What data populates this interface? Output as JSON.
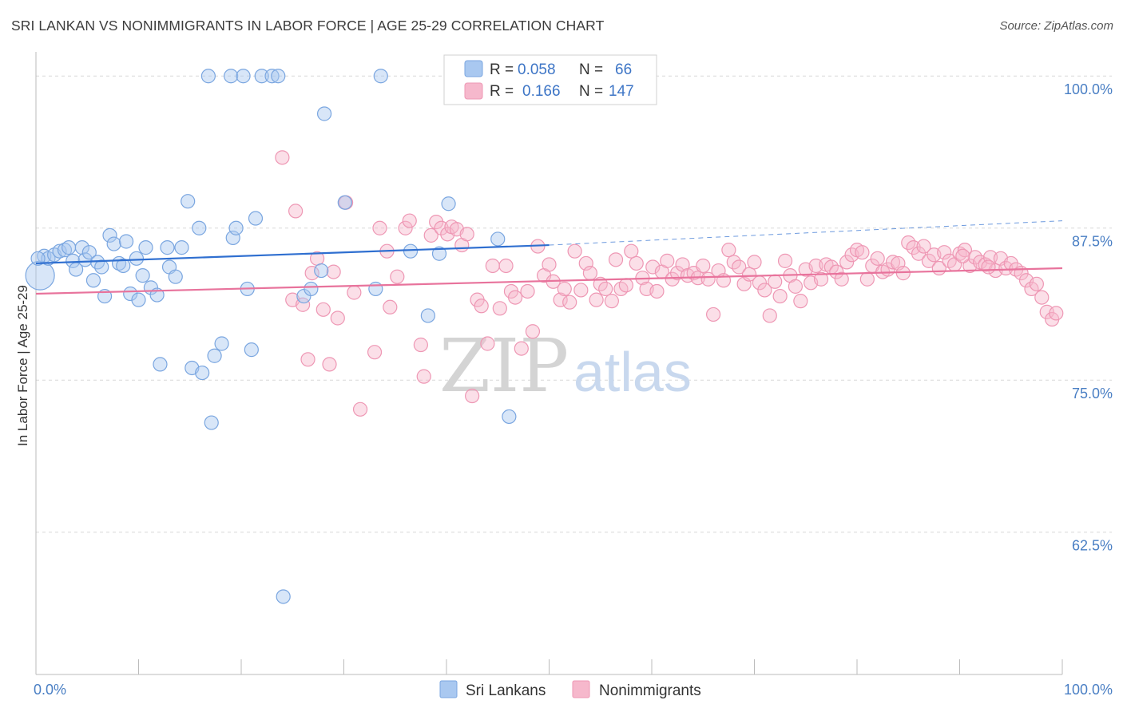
{
  "title": "SRI LANKAN VS NONIMMIGRANTS IN LABOR FORCE | AGE 25-29 CORRELATION CHART",
  "source": "Source: ZipAtlas.com",
  "watermark": {
    "zip": "ZIP",
    "atlas": "atlas"
  },
  "colors": {
    "blue_fill": "#a9c8f0",
    "blue_stroke": "#7aa6e0",
    "blue_line": "#2f6fd0",
    "pink_fill": "#f6b8cc",
    "pink_stroke": "#ee97b4",
    "pink_line": "#e8739c",
    "grid": "#d8d8d8",
    "tick_text": "#4a7fc4"
  },
  "legend_top": {
    "rows": [
      {
        "r_label": "R =",
        "r_value": "0.058",
        "n_label": "N =",
        "n_value": "66"
      },
      {
        "r_label": "R =",
        "r_value": "0.166",
        "n_label": "N =",
        "n_value": "147"
      }
    ]
  },
  "legend_bottom": [
    "Sri Lankans",
    "Nonimmigrants"
  ],
  "chart_data": {
    "type": "scatter",
    "xlabel": "",
    "ylabel": "In Labor Force | Age 25-29",
    "x_tick_labels": [
      "0.0%",
      "100.0%"
    ],
    "y_tick_labels": [
      "100.0%",
      "87.5%",
      "75.0%",
      "62.5%"
    ],
    "xlim": [
      0,
      100
    ],
    "ylim": [
      50.8,
      101.0
    ],
    "series": [
      {
        "name": "Sri Lankans",
        "color": "#a9c8f0",
        "trend": {
          "x": [
            0,
            50
          ],
          "y": [
            84.6,
            86.1
          ]
        },
        "trend_dashed": {
          "x": [
            50,
            100
          ],
          "y": [
            86.1,
            88.1
          ]
        },
        "points": [
          [
            0.4,
            83.6
          ],
          [
            0.8,
            85.2
          ],
          [
            1.2,
            85.0
          ],
          [
            1.8,
            85.3
          ],
          [
            2.3,
            85.6
          ],
          [
            2.8,
            85.7
          ],
          [
            3.2,
            85.9
          ],
          [
            3.6,
            84.8
          ],
          [
            3.9,
            84.1
          ],
          [
            4.5,
            85.9
          ],
          [
            4.8,
            84.9
          ],
          [
            5.2,
            85.5
          ],
          [
            5.6,
            83.2
          ],
          [
            6.0,
            84.7
          ],
          [
            6.4,
            84.3
          ],
          [
            6.7,
            81.9
          ],
          [
            7.2,
            86.9
          ],
          [
            7.6,
            86.2
          ],
          [
            8.1,
            84.6
          ],
          [
            8.5,
            84.4
          ],
          [
            8.8,
            86.4
          ],
          [
            9.2,
            82.1
          ],
          [
            9.8,
            85.0
          ],
          [
            10.0,
            81.6
          ],
          [
            10.4,
            83.6
          ],
          [
            10.7,
            85.9
          ],
          [
            11.2,
            82.6
          ],
          [
            11.8,
            82.0
          ],
          [
            12.1,
            76.3
          ],
          [
            12.8,
            85.9
          ],
          [
            13.0,
            84.3
          ],
          [
            13.6,
            83.5
          ],
          [
            14.2,
            85.9
          ],
          [
            14.8,
            89.7
          ],
          [
            15.2,
            76.0
          ],
          [
            15.9,
            87.5
          ],
          [
            16.2,
            75.6
          ],
          [
            16.8,
            100.0
          ],
          [
            17.1,
            71.5
          ],
          [
            17.4,
            77.0
          ],
          [
            18.1,
            78.0
          ],
          [
            19.0,
            100.0
          ],
          [
            19.2,
            86.7
          ],
          [
            19.5,
            87.5
          ],
          [
            20.2,
            100.0
          ],
          [
            20.6,
            82.5
          ],
          [
            21.0,
            77.5
          ],
          [
            21.4,
            88.3
          ],
          [
            22.0,
            100.0
          ],
          [
            23.0,
            100.0
          ],
          [
            23.6,
            100.0
          ],
          [
            24.1,
            57.2
          ],
          [
            26.1,
            81.9
          ],
          [
            26.8,
            82.5
          ],
          [
            27.8,
            84.0
          ],
          [
            28.1,
            96.9
          ],
          [
            30.1,
            89.6
          ],
          [
            33.1,
            82.5
          ],
          [
            33.6,
            100.0
          ],
          [
            36.5,
            85.6
          ],
          [
            38.2,
            80.3
          ],
          [
            39.3,
            85.4
          ],
          [
            40.2,
            89.5
          ],
          [
            45.0,
            86.6
          ],
          [
            46.1,
            72.0
          ],
          [
            0.2,
            85.0
          ]
        ]
      },
      {
        "name": "Nonimmigrants",
        "color": "#f6b8cc",
        "trend": {
          "x": [
            0,
            100
          ],
          "y": [
            82.1,
            84.2
          ]
        },
        "points": [
          [
            24.0,
            93.3
          ],
          [
            25.0,
            81.6
          ],
          [
            25.3,
            88.9
          ],
          [
            26.0,
            81.2
          ],
          [
            26.5,
            76.7
          ],
          [
            26.9,
            83.8
          ],
          [
            27.4,
            85.0
          ],
          [
            28.0,
            80.8
          ],
          [
            28.6,
            76.3
          ],
          [
            29.0,
            83.9
          ],
          [
            29.4,
            80.1
          ],
          [
            30.2,
            89.6
          ],
          [
            31.0,
            82.2
          ],
          [
            31.6,
            72.6
          ],
          [
            33.0,
            77.3
          ],
          [
            33.5,
            87.5
          ],
          [
            34.2,
            85.6
          ],
          [
            34.5,
            81.0
          ],
          [
            35.2,
            83.5
          ],
          [
            36.0,
            87.5
          ],
          [
            36.4,
            88.1
          ],
          [
            37.5,
            77.9
          ],
          [
            37.8,
            75.3
          ],
          [
            38.5,
            86.9
          ],
          [
            39.0,
            88.0
          ],
          [
            39.5,
            87.5
          ],
          [
            40.1,
            87.0
          ],
          [
            40.5,
            87.6
          ],
          [
            41.0,
            87.4
          ],
          [
            41.5,
            86.1
          ],
          [
            42.0,
            87.0
          ],
          [
            42.5,
            73.7
          ],
          [
            43.0,
            81.6
          ],
          [
            43.4,
            81.1
          ],
          [
            44.0,
            78.0
          ],
          [
            44.5,
            84.4
          ],
          [
            45.2,
            80.9
          ],
          [
            45.8,
            84.4
          ],
          [
            46.3,
            82.3
          ],
          [
            46.7,
            81.8
          ],
          [
            47.3,
            77.6
          ],
          [
            47.9,
            82.3
          ],
          [
            48.4,
            79.0
          ],
          [
            48.9,
            86.0
          ],
          [
            49.5,
            83.6
          ],
          [
            50.0,
            84.5
          ],
          [
            50.4,
            83.1
          ],
          [
            51.1,
            81.6
          ],
          [
            51.5,
            82.5
          ],
          [
            52.0,
            81.4
          ],
          [
            52.5,
            85.6
          ],
          [
            53.1,
            82.4
          ],
          [
            53.6,
            84.6
          ],
          [
            54.0,
            83.8
          ],
          [
            54.6,
            81.6
          ],
          [
            55.0,
            82.9
          ],
          [
            55.5,
            82.5
          ],
          [
            56.1,
            81.5
          ],
          [
            56.5,
            84.9
          ],
          [
            57.0,
            82.5
          ],
          [
            57.5,
            82.8
          ],
          [
            58.0,
            85.6
          ],
          [
            58.5,
            84.6
          ],
          [
            59.1,
            83.4
          ],
          [
            59.5,
            82.5
          ],
          [
            60.1,
            84.3
          ],
          [
            60.5,
            82.3
          ],
          [
            61.0,
            83.9
          ],
          [
            61.5,
            84.8
          ],
          [
            62.0,
            83.3
          ],
          [
            62.5,
            83.8
          ],
          [
            63.0,
            84.5
          ],
          [
            63.5,
            83.6
          ],
          [
            64.1,
            83.8
          ],
          [
            64.5,
            83.4
          ],
          [
            65.0,
            84.4
          ],
          [
            65.5,
            83.3
          ],
          [
            66.0,
            80.4
          ],
          [
            66.5,
            84.0
          ],
          [
            67.0,
            83.2
          ],
          [
            67.5,
            85.7
          ],
          [
            68.0,
            84.7
          ],
          [
            68.5,
            84.3
          ],
          [
            69.0,
            82.9
          ],
          [
            69.5,
            83.7
          ],
          [
            70.0,
            84.7
          ],
          [
            70.5,
            83.0
          ],
          [
            71.0,
            82.4
          ],
          [
            71.5,
            80.3
          ],
          [
            72.0,
            83.1
          ],
          [
            72.5,
            81.9
          ],
          [
            73.0,
            84.8
          ],
          [
            73.5,
            83.6
          ],
          [
            74.0,
            82.7
          ],
          [
            74.5,
            81.5
          ],
          [
            75.0,
            84.1
          ],
          [
            75.5,
            83.0
          ],
          [
            76.0,
            84.4
          ],
          [
            76.5,
            83.3
          ],
          [
            77.0,
            84.5
          ],
          [
            77.5,
            84.3
          ],
          [
            78.0,
            83.9
          ],
          [
            78.5,
            83.3
          ],
          [
            79.0,
            84.7
          ],
          [
            79.5,
            85.3
          ],
          [
            80.0,
            85.7
          ],
          [
            80.5,
            85.5
          ],
          [
            81.0,
            83.3
          ],
          [
            81.5,
            84.4
          ],
          [
            82.0,
            85.0
          ],
          [
            82.5,
            83.9
          ],
          [
            83.0,
            84.1
          ],
          [
            83.5,
            84.7
          ],
          [
            84.0,
            84.6
          ],
          [
            84.5,
            83.8
          ],
          [
            85.0,
            86.3
          ],
          [
            85.5,
            85.9
          ],
          [
            86.0,
            85.4
          ],
          [
            86.5,
            86.0
          ],
          [
            87.0,
            84.8
          ],
          [
            87.5,
            85.3
          ],
          [
            88.0,
            84.2
          ],
          [
            88.5,
            85.5
          ],
          [
            89.0,
            84.8
          ],
          [
            89.5,
            84.5
          ],
          [
            90.0,
            85.4
          ],
          [
            90.5,
            85.7
          ],
          [
            91.0,
            84.4
          ],
          [
            91.5,
            85.1
          ],
          [
            92.0,
            84.7
          ],
          [
            92.5,
            84.5
          ],
          [
            93.0,
            85.1
          ],
          [
            93.5,
            84.0
          ],
          [
            94.0,
            85.0
          ],
          [
            94.5,
            84.2
          ],
          [
            95.0,
            84.6
          ],
          [
            95.5,
            84.1
          ],
          [
            96.0,
            83.8
          ],
          [
            96.5,
            83.2
          ],
          [
            97.0,
            82.5
          ],
          [
            97.5,
            82.9
          ],
          [
            98.0,
            81.8
          ],
          [
            98.5,
            80.6
          ],
          [
            99.0,
            80.0
          ],
          [
            99.4,
            80.5
          ],
          [
            90.3,
            85.2
          ],
          [
            92.8,
            84.3
          ]
        ]
      }
    ],
    "grid": true,
    "legend_position": "top-center"
  }
}
